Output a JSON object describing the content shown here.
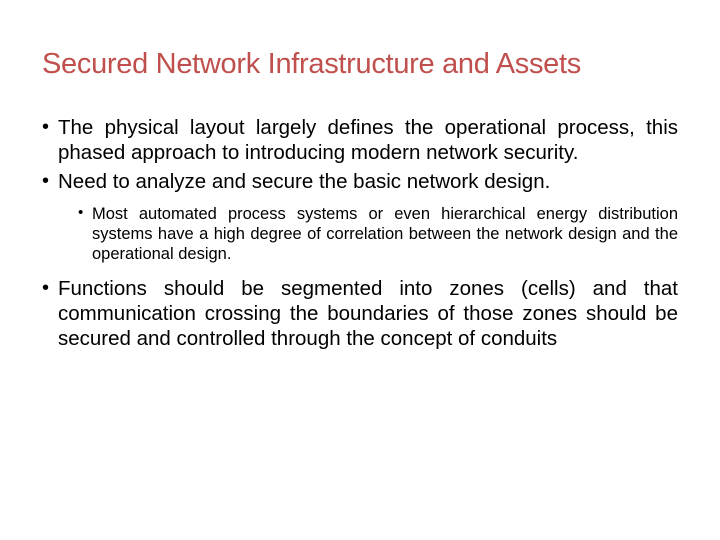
{
  "slide": {
    "title": "Secured Network Infrastructure and Assets",
    "title_color": "#c0504d",
    "title_fontsize": 29,
    "body_fontsize": 20.5,
    "sub_fontsize": 16.5,
    "background_color": "#ffffff",
    "text_color": "#000000",
    "bullets": [
      {
        "text": "The physical layout largely defines the operational process, this phased approach to introducing modern network security."
      },
      {
        "text": "Need to analyze and secure the basic network design.",
        "sub": [
          {
            "text": "Most automated process systems or even hierarchical energy distribution systems have a high degree of correlation between the network design and the operational design."
          }
        ]
      },
      {
        "text": "Functions should be segmented into zones (cells) and that communication crossing the boundaries of those zones should be secured and controlled through the concept of conduits"
      }
    ]
  }
}
